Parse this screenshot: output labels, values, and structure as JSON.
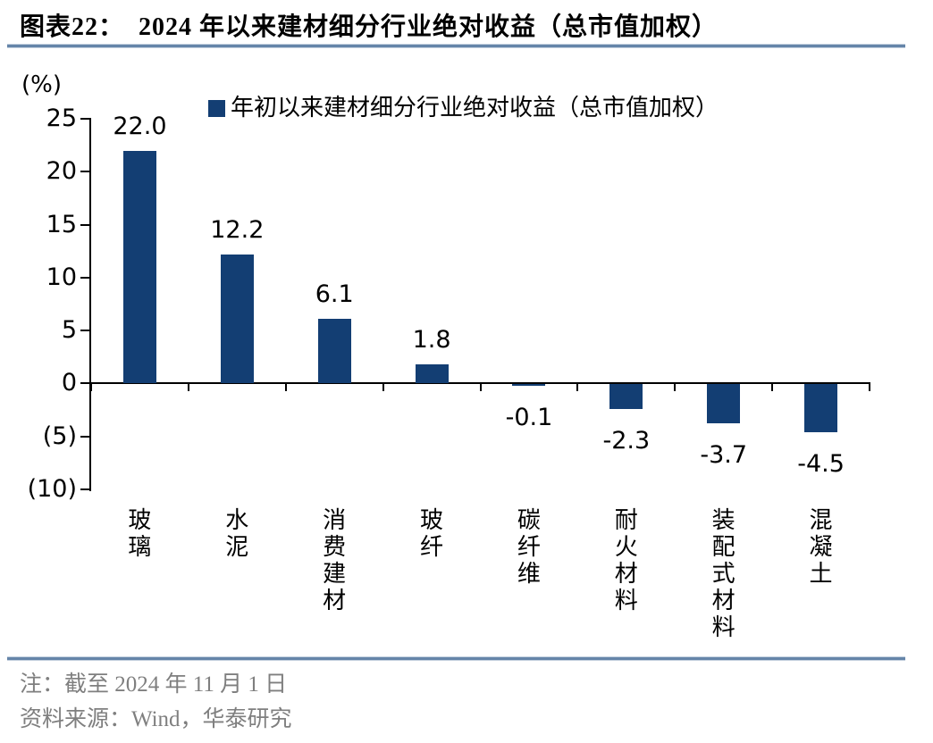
{
  "figure": {
    "title": "图表22：  2024 年以来建材细分行业绝对收益（总市值加权）",
    "unit_label": "(%)",
    "note": "注：截至 2024 年 11 月 1 日",
    "source": "资料来源：Wind，华泰研究"
  },
  "legend": {
    "label": "年初以来建材细分行业绝对收益（总市值加权）"
  },
  "colors": {
    "bar": "#133e73",
    "divider_line": "#6585a9",
    "note_text": "#7f7f7f",
    "axis": "#000000"
  },
  "chart_data": {
    "type": "bar",
    "title": "2024 年以来建材细分行业绝对收益（总市值加权）",
    "categories": [
      "玻璃",
      "水泥",
      "消费建材",
      "玻纤",
      "碳纤维",
      "耐火材料",
      "装配式材料",
      "混凝土"
    ],
    "values": [
      22.0,
      12.2,
      6.1,
      1.8,
      -0.1,
      -2.3,
      -3.7,
      -4.5
    ],
    "value_labels": [
      "22.0",
      "12.2",
      "6.1",
      "1.8",
      "-0.1",
      "-2.3",
      "-3.7",
      "-4.5"
    ],
    "series_name": "年初以来建材细分行业绝对收益（总市值加权）",
    "xlabel": "",
    "ylabel": "(%)",
    "ylim": [
      -10,
      25
    ],
    "yticks": [
      25,
      20,
      15,
      10,
      5,
      0,
      -5,
      -10
    ],
    "ytick_labels": [
      "25",
      "20",
      "15",
      "10",
      "5",
      "0",
      "(5)",
      "(10)"
    ],
    "grid": false,
    "legend_position": "top"
  }
}
